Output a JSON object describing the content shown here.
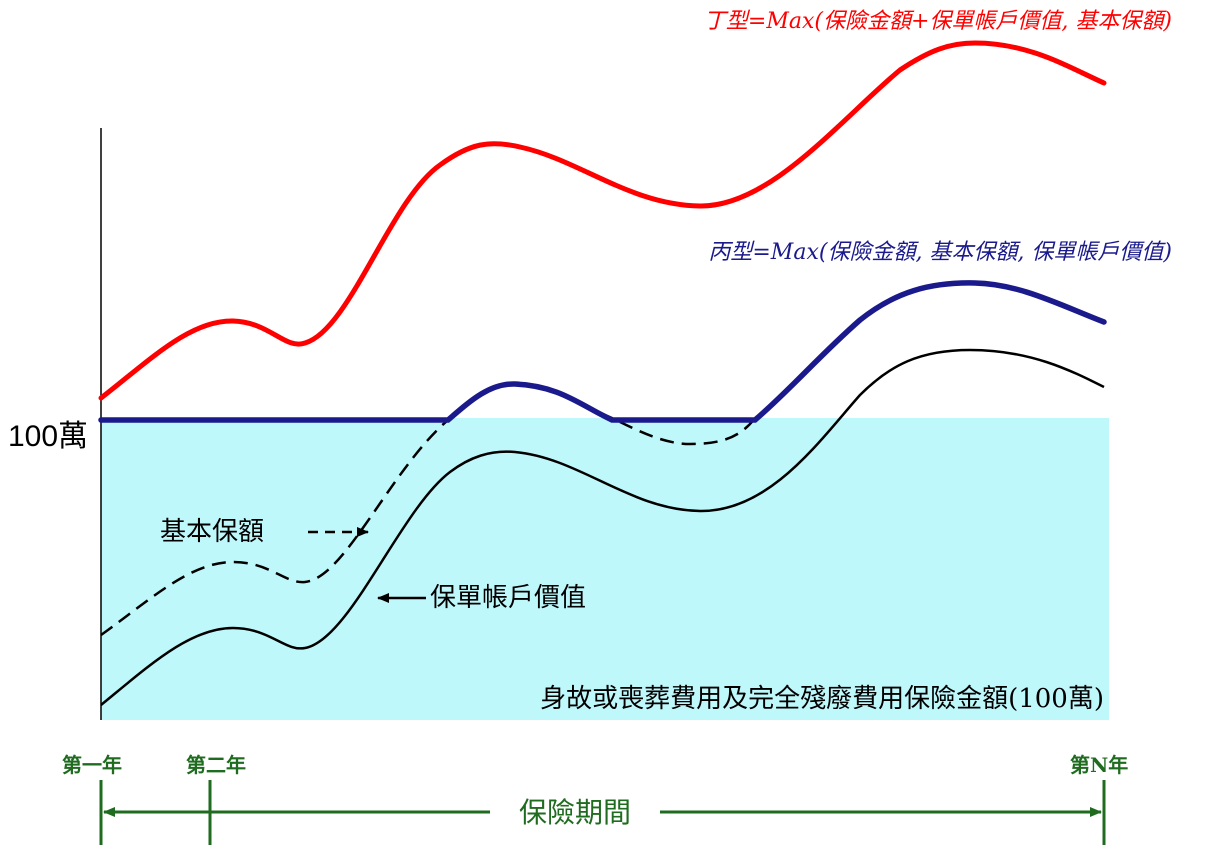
{
  "y_level_label": "100萬",
  "baseline_label": "身故或喪葬費用及完全殘廢費用保險金額(100萬)",
  "curves": {
    "type_d": {
      "label": "丁型=Max(保險金額+保單帳戶價值, 基本保額)",
      "color": "#ff0000"
    },
    "type_c": {
      "label": "丙型=Max(保險金額, 基本保額, 保單帳戶價值)",
      "color": "#1a1a8c"
    },
    "basic_amount": {
      "label": "基本保額",
      "color": "#000000"
    },
    "account_value": {
      "label": "保單帳戶價值",
      "color": "#000000"
    }
  },
  "timeline": {
    "year_1": "第一年",
    "year_2": "第二年",
    "year_n": "第N年",
    "period_label": "保險期間",
    "color": "#1f6b1f"
  },
  "fill_color": "#bff8fb"
}
